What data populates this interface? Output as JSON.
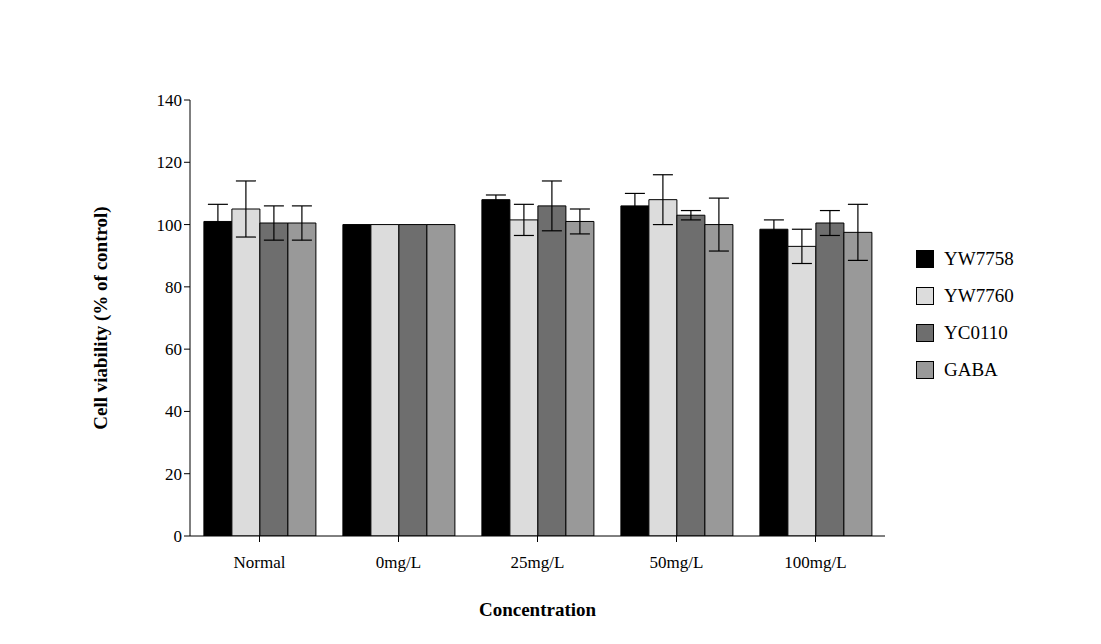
{
  "chart_data": {
    "type": "bar",
    "x_label": "Concentration",
    "y_label": "Cell viability (% of control)",
    "categories": [
      "Normal",
      "0mg/L",
      "25mg/L",
      "50mg/L",
      "100mg/L"
    ],
    "series": [
      {
        "name": "YW7758",
        "color": "#000000",
        "values": [
          101,
          100,
          108,
          106,
          98.5
        ],
        "errors": [
          5.5,
          0,
          1.5,
          4,
          3
        ]
      },
      {
        "name": "YW7760",
        "color": "#dcdcdc",
        "values": [
          105,
          100,
          101.5,
          108,
          93
        ],
        "errors": [
          9,
          0,
          5,
          8,
          5.5
        ]
      },
      {
        "name": "YC0110",
        "color": "#6e6e6e",
        "values": [
          100.5,
          100,
          106,
          103,
          100.5
        ],
        "errors": [
          5.5,
          0,
          8,
          1.5,
          4
        ]
      },
      {
        "name": "GABA",
        "color": "#999999",
        "values": [
          100.5,
          100,
          101,
          100,
          97.5
        ],
        "errors": [
          5.5,
          0,
          4,
          8.5,
          9
        ]
      }
    ],
    "ylim": [
      0,
      140
    ],
    "yticks": [
      0,
      20,
      40,
      60,
      80,
      100,
      120,
      140
    ],
    "grid": false,
    "legend": "right"
  }
}
